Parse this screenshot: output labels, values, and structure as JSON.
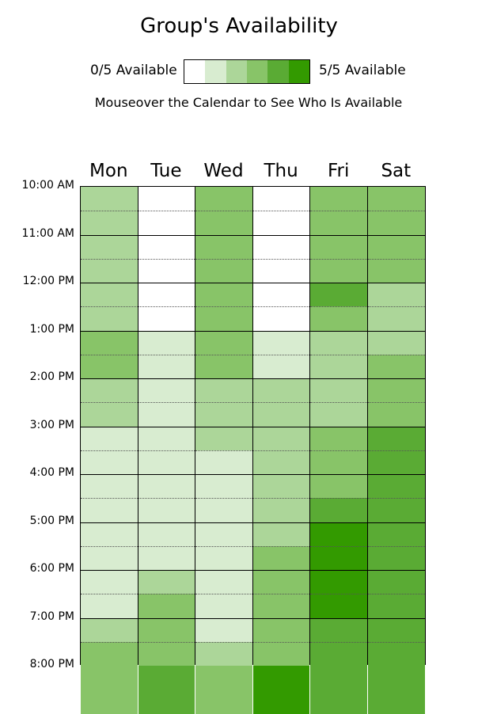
{
  "header": {
    "title": "Group's Availability",
    "legend_min": "0/5 Available",
    "legend_max": "5/5 Available",
    "hint": "Mouseover the Calendar to See Who Is Available"
  },
  "legend_colors": [
    "#ffffff",
    "#d8ecd0",
    "#acd699",
    "#88c468",
    "#5aab34",
    "#339a00"
  ],
  "days": [
    "Mon",
    "Tue",
    "Wed",
    "Thu",
    "Fri",
    "Sat"
  ],
  "times": [
    "10:00 AM",
    "11:00 AM",
    "12:00 PM",
    "1:00 PM",
    "2:00 PM",
    "3:00 PM",
    "4:00 PM",
    "5:00 PM",
    "6:00 PM",
    "7:00 PM",
    "8:00 PM"
  ],
  "availability": {
    "Mon": [
      2,
      2,
      2,
      2,
      2,
      2,
      3,
      3,
      2,
      2,
      1,
      1,
      1,
      1,
      1,
      1,
      1,
      1,
      2,
      3,
      3,
      3
    ],
    "Tue": [
      0,
      0,
      0,
      0,
      0,
      0,
      1,
      1,
      1,
      1,
      1,
      1,
      1,
      1,
      1,
      1,
      2,
      3,
      3,
      3,
      4,
      4
    ],
    "Wed": [
      3,
      3,
      3,
      3,
      3,
      3,
      3,
      3,
      2,
      2,
      2,
      1,
      1,
      1,
      1,
      1,
      1,
      1,
      1,
      2,
      3,
      3
    ],
    "Thu": [
      0,
      0,
      0,
      0,
      0,
      0,
      1,
      1,
      2,
      2,
      2,
      2,
      2,
      2,
      2,
      3,
      3,
      3,
      3,
      3,
      5,
      5
    ],
    "Fri": [
      3,
      3,
      3,
      3,
      4,
      3,
      2,
      2,
      2,
      2,
      3,
      3,
      3,
      4,
      5,
      5,
      5,
      5,
      4,
      4,
      4,
      4
    ],
    "Sat": [
      3,
      3,
      3,
      3,
      2,
      2,
      2,
      3,
      3,
      3,
      4,
      4,
      4,
      4,
      4,
      4,
      4,
      4,
      4,
      4,
      4,
      4
    ]
  },
  "availability_note": "levels per 30-minute slot, 10:00 AM to 8:00 PM (0-5 available)"
}
